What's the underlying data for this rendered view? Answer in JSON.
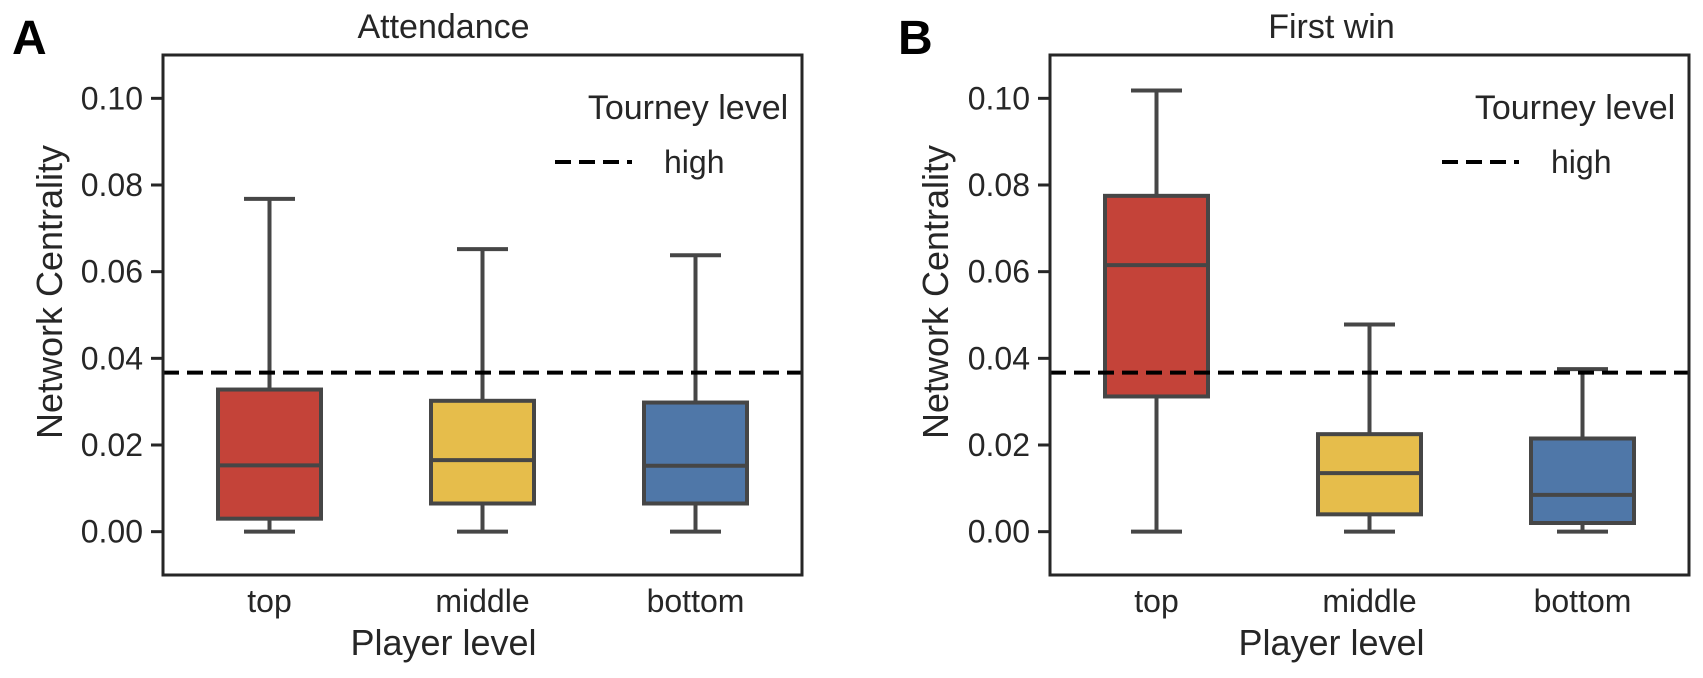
{
  "figure": {
    "panels": [
      "A",
      "B"
    ]
  },
  "chart_data": [
    {
      "panel": "A",
      "type": "box",
      "title": "Attendance",
      "xlabel": "Player level",
      "ylabel": "Network Centrality",
      "categories": [
        "top",
        "middle",
        "bottom"
      ],
      "colors": [
        "#c44339",
        "#e6bd4b",
        "#4f77a8"
      ],
      "ylim": [
        -0.01,
        0.11
      ],
      "yticks": [
        0.0,
        0.02,
        0.04,
        0.06,
        0.08,
        0.1
      ],
      "ytick_labels": [
        "0.00",
        "0.02",
        "0.04",
        "0.06",
        "0.08",
        "0.10"
      ],
      "grid": false,
      "boxes": [
        {
          "category": "top",
          "whisker_low": 0.0,
          "q1": 0.003,
          "median": 0.0153,
          "q3": 0.0328,
          "whisker_high": 0.0768
        },
        {
          "category": "middle",
          "whisker_low": 0.0,
          "q1": 0.0065,
          "median": 0.0165,
          "q3": 0.0302,
          "whisker_high": 0.0652
        },
        {
          "category": "bottom",
          "whisker_low": 0.0,
          "q1": 0.0065,
          "median": 0.0152,
          "q3": 0.0298,
          "whisker_high": 0.0638
        }
      ],
      "reference_line": {
        "y": 0.0367,
        "style": "dashed",
        "color": "#000000"
      },
      "legend": {
        "title": "Tourney level",
        "entries": [
          "high"
        ],
        "placement": "top-right"
      }
    },
    {
      "panel": "B",
      "type": "box",
      "title": "First win",
      "xlabel": "Player level",
      "ylabel": "Network Centrality",
      "categories": [
        "top",
        "middle",
        "bottom"
      ],
      "colors": [
        "#c44339",
        "#e6bd4b",
        "#4f77a8"
      ],
      "ylim": [
        -0.01,
        0.11
      ],
      "yticks": [
        0.0,
        0.02,
        0.04,
        0.06,
        0.08,
        0.1
      ],
      "ytick_labels": [
        "0.00",
        "0.02",
        "0.04",
        "0.06",
        "0.08",
        "0.10"
      ],
      "grid": false,
      "boxes": [
        {
          "category": "top",
          "whisker_low": 0.0,
          "q1": 0.0312,
          "median": 0.0615,
          "q3": 0.0775,
          "whisker_high": 0.1018
        },
        {
          "category": "middle",
          "whisker_low": 0.0,
          "q1": 0.004,
          "median": 0.0135,
          "q3": 0.0225,
          "whisker_high": 0.0478
        },
        {
          "category": "bottom",
          "whisker_low": 0.0,
          "q1": 0.002,
          "median": 0.0085,
          "q3": 0.0215,
          "whisker_high": 0.0375
        }
      ],
      "reference_line": {
        "y": 0.0367,
        "style": "dashed",
        "color": "#000000"
      },
      "legend": {
        "title": "Tourney level",
        "entries": [
          "high"
        ],
        "placement": "top-right"
      }
    }
  ]
}
